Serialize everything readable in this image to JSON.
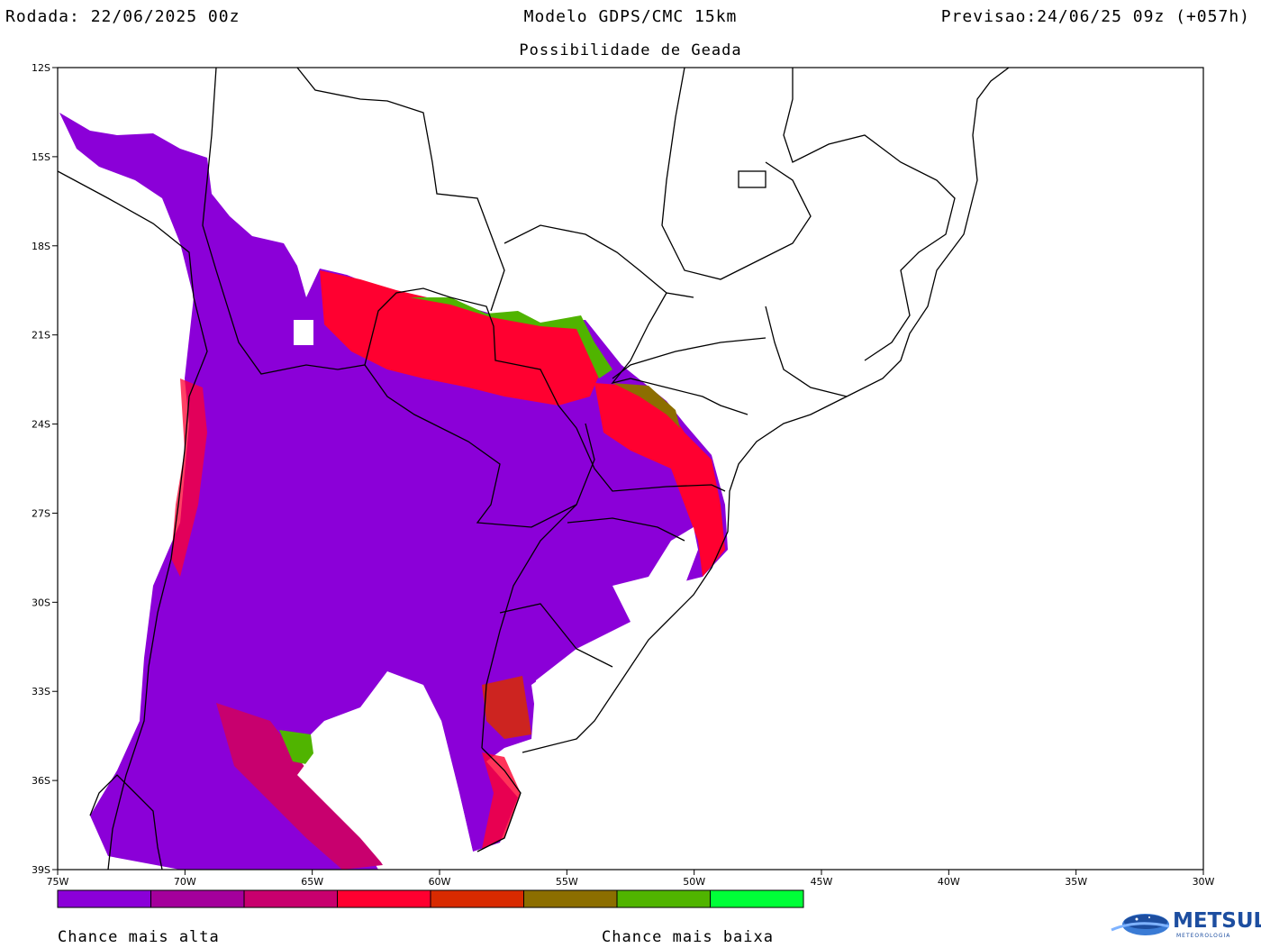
{
  "header": {
    "run": "Rodada: 22/06/2025 00z",
    "model": "Modelo GDPS/CMC 15km",
    "forecast": "Previsao:24/06/25 09z (+057h)",
    "subtitle": "Possibilidade de Geada"
  },
  "axes": {
    "lat_labels": [
      "12S",
      "15S",
      "18S",
      "21S",
      "24S",
      "27S",
      "30S",
      "33S",
      "36S",
      "39S"
    ],
    "lon_labels": [
      "75W",
      "70W",
      "65W",
      "60W",
      "55W",
      "50W",
      "45W",
      "40W",
      "35W",
      "30W"
    ]
  },
  "legend": {
    "colors": [
      "#8b00d8",
      "#a4009c",
      "#c8006e",
      "#ff0030",
      "#d82a00",
      "#8c6e00",
      "#50b400",
      "#00ff38"
    ],
    "high_label": "Chance mais alta",
    "low_label": "Chance mais baixa"
  },
  "logo": {
    "name": "METSUL",
    "tagline": "METEOROLOGIA"
  }
}
